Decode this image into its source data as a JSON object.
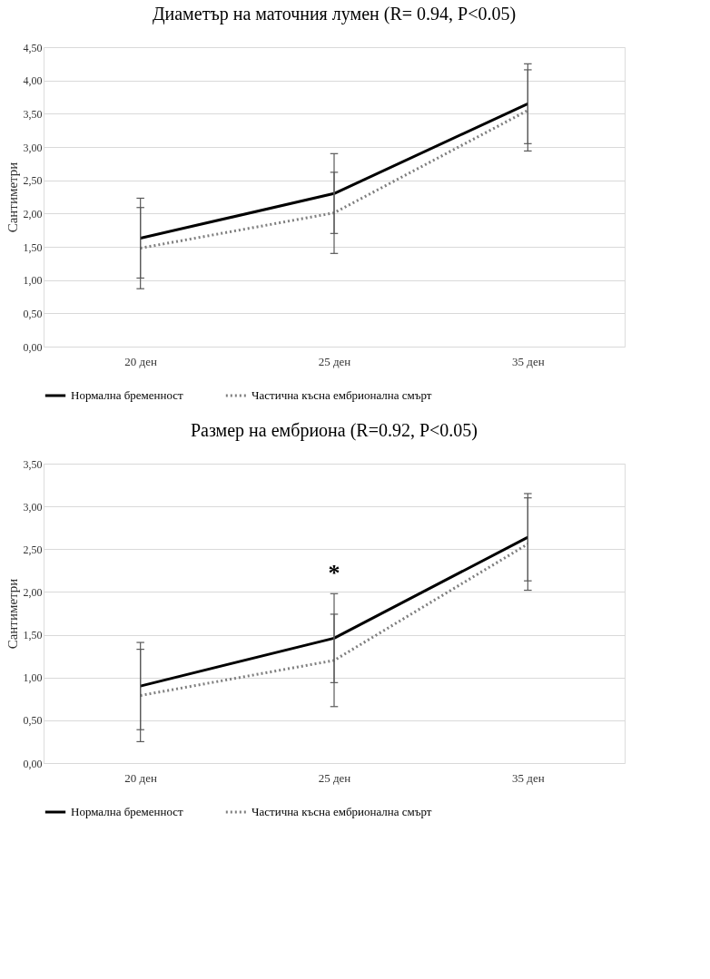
{
  "chart_data": [
    {
      "type": "line",
      "title": "Диаметър на маточния лумен (R= 0.94, P<0.05)",
      "ylabel": "Сантиметри",
      "categories": [
        "20 ден",
        "25 ден",
        "35 ден"
      ],
      "series": [
        {
          "name": "Нормална бременност",
          "color": "#000000",
          "line_style": "solid",
          "values": [
            1.63,
            2.3,
            3.65
          ],
          "errors": [
            0.6,
            0.6,
            0.6
          ]
        },
        {
          "name": "Частична късна ембрионална смърт",
          "color": "#7f7f7f",
          "line_style": "dotted",
          "values": [
            1.48,
            2.01,
            3.55
          ],
          "errors": [
            0.61,
            0.61,
            0.61
          ]
        }
      ],
      "ylim": [
        0,
        4.5
      ],
      "yticks": [
        {
          "value": 0,
          "label": "0,00"
        },
        {
          "value": 0.5,
          "label": "0,50"
        },
        {
          "value": 1,
          "label": "1,00"
        },
        {
          "value": 1.5,
          "label": "1,50"
        },
        {
          "value": 2,
          "label": "2,00"
        },
        {
          "value": 2.5,
          "label": "2,50"
        },
        {
          "value": 3,
          "label": "3,00"
        },
        {
          "value": 3.5,
          "label": "3,50"
        },
        {
          "value": 4,
          "label": "4,00"
        },
        {
          "value": 4.5,
          "label": "4,50"
        }
      ],
      "grid": "y",
      "legend": "bottom"
    },
    {
      "type": "line",
      "title": "Размер на ембриона (R=0.92, P<0.05)",
      "ylabel": "Сантиметри",
      "categories": [
        "20 ден",
        "25 ден",
        "35 ден"
      ],
      "series": [
        {
          "name": "Нормална бременност",
          "color": "#000000",
          "line_style": "solid",
          "values": [
            0.9,
            1.46,
            2.64
          ],
          "errors": [
            0.51,
            0.52,
            0.51
          ]
        },
        {
          "name": "Частична късна ембрионална смърт",
          "color": "#7f7f7f",
          "line_style": "dotted",
          "values": [
            0.79,
            1.2,
            2.56
          ],
          "errors": [
            0.54,
            0.54,
            0.54
          ]
        }
      ],
      "ylim": [
        0,
        3.5
      ],
      "yticks": [
        {
          "value": 0,
          "label": "0,00"
        },
        {
          "value": 0.5,
          "label": "0,50"
        },
        {
          "value": 1,
          "label": "1,00"
        },
        {
          "value": 1.5,
          "label": "1,50"
        },
        {
          "value": 2,
          "label": "2,00"
        },
        {
          "value": 2.5,
          "label": "2,50"
        },
        {
          "value": 3,
          "label": "3,00"
        },
        {
          "value": 3.5,
          "label": "3,50"
        }
      ],
      "annotations": [
        "*"
      ],
      "grid": "y",
      "legend": "bottom"
    }
  ]
}
